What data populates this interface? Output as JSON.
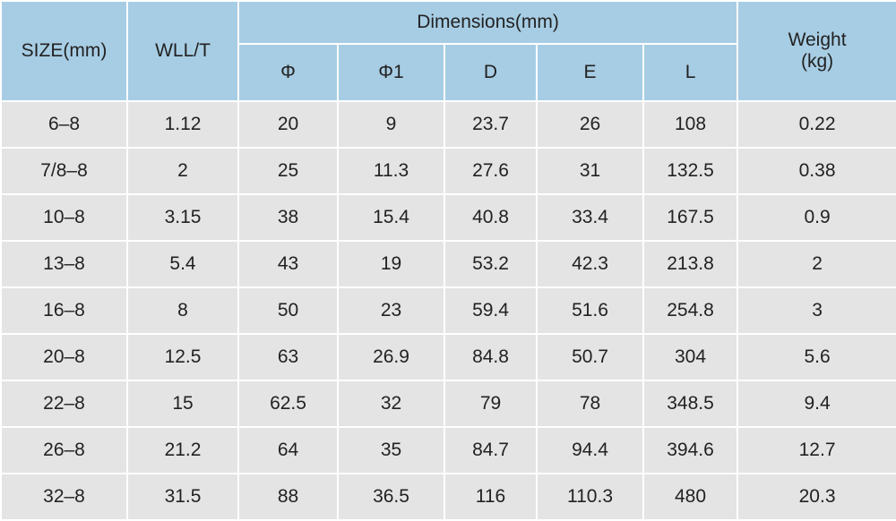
{
  "table": {
    "headers": {
      "size": "SIZE(mm)",
      "wll": "WLL/T",
      "dimensions": "Dimensions(mm)",
      "phi": "Φ",
      "phi1": "Φ1",
      "d": "D",
      "e": "E",
      "l": "L",
      "weight_line1": "Weight",
      "weight_line2": "(kg)"
    },
    "rows": [
      [
        "6–8",
        "1.12",
        "20",
        "9",
        "23.7",
        "26",
        "108",
        "0.22"
      ],
      [
        "7/8–8",
        "2",
        "25",
        "11.3",
        "27.6",
        "31",
        "132.5",
        "0.38"
      ],
      [
        "10–8",
        "3.15",
        "38",
        "15.4",
        "40.8",
        "33.4",
        "167.5",
        "0.9"
      ],
      [
        "13–8",
        "5.4",
        "43",
        "19",
        "53.2",
        "42.3",
        "213.8",
        "2"
      ],
      [
        "16–8",
        "8",
        "50",
        "23",
        "59.4",
        "51.6",
        "254.8",
        "3"
      ],
      [
        "20–8",
        "12.5",
        "63",
        "26.9",
        "84.8",
        "50.7",
        "304",
        "5.6"
      ],
      [
        "22–8",
        "15",
        "62.5",
        "32",
        "79",
        "78",
        "348.5",
        "9.4"
      ],
      [
        "26–8",
        "21.2",
        "64",
        "35",
        "84.7",
        "94.4",
        "394.6",
        "12.7"
      ],
      [
        "32–8",
        "31.5",
        "88",
        "36.5",
        "116",
        "110.3",
        "480",
        "20.3"
      ]
    ]
  }
}
